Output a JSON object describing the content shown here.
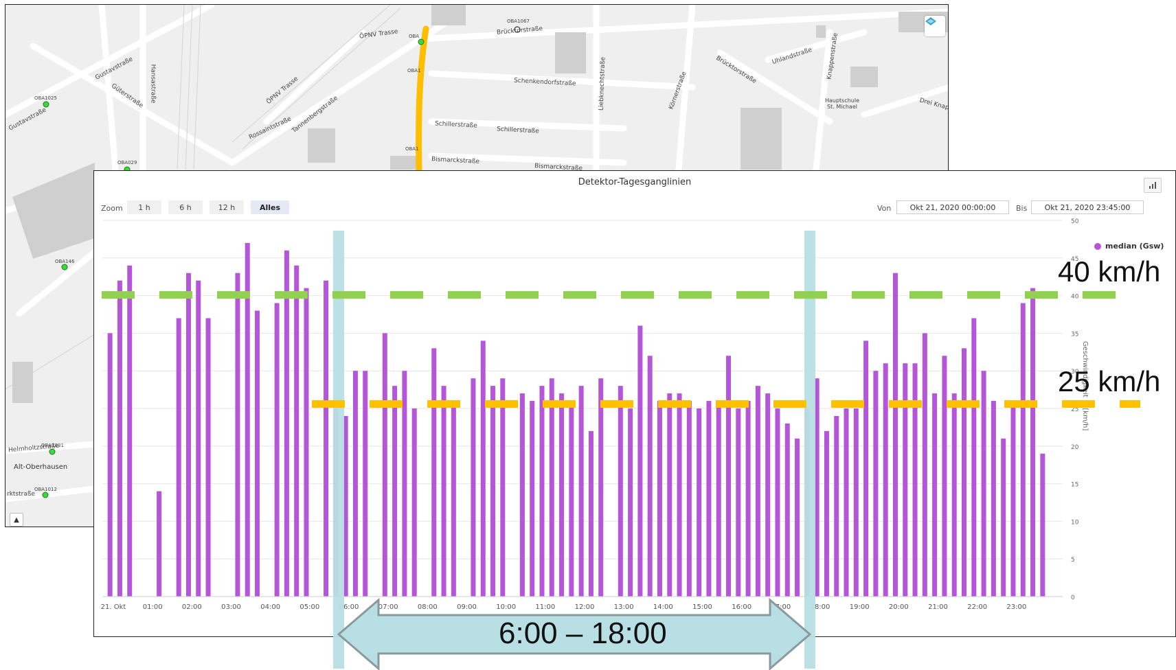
{
  "map": {
    "street_labels": [
      "Gustavstraße",
      "Güterstraße",
      "Gustavstraße",
      "Hansastraße",
      "ÖPNV Trasse",
      "ÖPNV Trasse",
      "Rossaintstraße",
      "Tannenbergstraße",
      "Brücktorstraße",
      "Schenkendorfstraße",
      "Schillerstraße",
      "Schillerstraße",
      "Bismarckstraße",
      "Bismarckstraße",
      "Liebknechtstraße",
      "Körnerstraße",
      "Brücktorstraße",
      "Uhlandstraße",
      "Knappenstraße",
      "Drei Knap",
      "Hauptschule St. Michael",
      "Helmholtzstraße",
      "Alt-Oberhausen",
      "rktstraße"
    ],
    "detector_labels": [
      "OBA1025",
      "OBA029",
      "OBA146",
      "OBA1031",
      "OBA1012",
      "OBA1067",
      "OBA",
      "OBA1",
      "OBA1"
    ],
    "layer_icon": "layers-icon",
    "up_icon": "chevron-up-icon"
  },
  "panel": {
    "title": "Detektor-Tagesganglinien",
    "menu_icon": "chart-menu-icon",
    "zoom_label": "Zoom",
    "zoom_buttons": [
      "1 h",
      "6 h",
      "12 h",
      "Alles"
    ],
    "von_label": "Von",
    "von_value": "Okt 21, 2020 00:00:00",
    "bis_label": "Bis",
    "bis_value": "Okt 21, 2020 23:45:00",
    "legend": "median (Gsw)"
  },
  "chart_data": {
    "type": "bar",
    "ylabel": "Geschwindigkeit in [km/h]",
    "ylim": [
      0,
      50
    ],
    "y_ticks": [
      0,
      5,
      10,
      15,
      20,
      25,
      30,
      35,
      40,
      45,
      50
    ],
    "x_tick_labels": [
      "21. Okt",
      "01:00",
      "02:00",
      "03:00",
      "04:00",
      "05:00",
      "06:00",
      "07:00",
      "08:00",
      "09:00",
      "10:00",
      "11:00",
      "12:00",
      "13:00",
      "14:00",
      "15:00",
      "16:00",
      "17:00",
      "18:00",
      "19:00",
      "20:00",
      "21:00",
      "22:00",
      "23:00"
    ],
    "series": [
      {
        "name": "median (Gsw)",
        "color": "#b556d9",
        "times": [
          "00:00",
          "00:15",
          "00:30",
          "00:45",
          "01:00",
          "01:15",
          "01:30",
          "01:45",
          "02:00",
          "02:15",
          "02:30",
          "02:45",
          "03:00",
          "03:15",
          "03:30",
          "03:45",
          "04:00",
          "04:15",
          "04:30",
          "04:45",
          "05:00",
          "05:15",
          "05:30",
          "05:45",
          "06:00",
          "06:15",
          "06:30",
          "06:45",
          "07:00",
          "07:15",
          "07:30",
          "07:45",
          "08:00",
          "08:15",
          "08:30",
          "08:45",
          "09:00",
          "09:15",
          "09:30",
          "09:45",
          "10:00",
          "10:15",
          "10:30",
          "10:45",
          "11:00",
          "11:15",
          "11:30",
          "11:45",
          "12:00",
          "12:15",
          "12:30",
          "12:45",
          "13:00",
          "13:15",
          "13:30",
          "13:45",
          "14:00",
          "14:15",
          "14:30",
          "14:45",
          "15:00",
          "15:15",
          "15:30",
          "15:45",
          "16:00",
          "16:15",
          "16:30",
          "16:45",
          "17:00",
          "17:15",
          "17:30",
          "17:45",
          "18:00",
          "18:15",
          "18:30",
          "18:45",
          "19:00",
          "19:15",
          "19:30",
          "19:45",
          "20:00",
          "20:15",
          "20:30",
          "20:45",
          "21:00",
          "21:15",
          "21:30",
          "21:45",
          "22:00",
          "22:15",
          "22:30",
          "22:45",
          "23:00",
          "23:15",
          "23:30",
          "23:45"
        ],
        "values": [
          35,
          42,
          44,
          null,
          null,
          14,
          null,
          37,
          43,
          42,
          37,
          null,
          null,
          43,
          47,
          38,
          null,
          39,
          46,
          44,
          41,
          null,
          42,
          25,
          24,
          30,
          30,
          null,
          35,
          28,
          30,
          25,
          null,
          33,
          28,
          26,
          null,
          29,
          34,
          28,
          29,
          null,
          27,
          26,
          28,
          29,
          27,
          26,
          28,
          22,
          29,
          null,
          28,
          25,
          36,
          32,
          26,
          27,
          27,
          26,
          25,
          26,
          26,
          32,
          25,
          26,
          28,
          27,
          25,
          23,
          21,
          25,
          29,
          22,
          24,
          25,
          25,
          34,
          30,
          31,
          43,
          31,
          31,
          35,
          27,
          32,
          27,
          33,
          37,
          30,
          26,
          21,
          26,
          39,
          41,
          19
        ]
      }
    ],
    "speed_thresholds": [
      {
        "label": "40 km/h",
        "value": 40,
        "color": "#92d050"
      },
      {
        "label": "25 km/h",
        "value": 25.5,
        "color": "#ffc000"
      }
    ],
    "time_window": {
      "label": "6:00 – 18:00",
      "start": "06:00",
      "end": "18:00",
      "color": "#b8dfe3"
    }
  }
}
